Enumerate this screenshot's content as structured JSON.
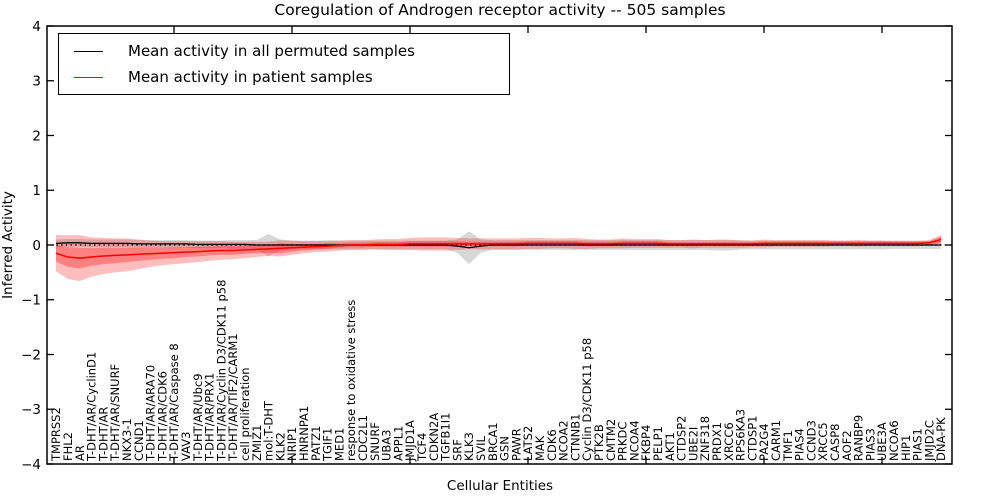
{
  "title": "Coregulation of Androgen receptor activity -- 505 samples",
  "xlabel": "Cellular Entities",
  "ylabel": "Inferred Activity",
  "legend": {
    "items": [
      {
        "label": "Mean activity in all permuted samples",
        "color": "#000000"
      },
      {
        "label": "Mean activity in patient samples",
        "color": "#ff0000"
      }
    ]
  },
  "colors": {
    "patient_line": "#ff0000",
    "permuted_line": "#000000",
    "patient_band": "#ff0000",
    "permuted_band": "#8c8c8c",
    "frame": "#000000",
    "background": "#ffffff"
  },
  "chart_data": {
    "type": "line",
    "title": "Coregulation of Androgen receptor activity -- 505 samples",
    "xlabel": "Cellular Entities",
    "ylabel": "Inferred Activity",
    "ylim": [
      -4,
      4
    ],
    "yticks": [
      -4,
      -3,
      -2,
      -1,
      0,
      1,
      2,
      3,
      4
    ],
    "yticklabels": [
      "−4",
      "−3",
      "−2",
      "−1",
      "0",
      "1",
      "2",
      "3",
      "4"
    ],
    "xtick_every": 10,
    "grid": false,
    "legend_position": "upper left",
    "zero_line": {
      "style": "dotted",
      "color": "#000000",
      "y": 0
    },
    "categories": [
      "TMPRSS2",
      "FHL2",
      "AR",
      "T-DHT/AR/CyclinD1",
      "T-DHT/AR",
      "T-DHT/AR/SNURF",
      "NKX3-1",
      "CCND1",
      "T-DHT/AR/ARA70",
      "T-DHT/AR/CDK6",
      "T-DHT/AR/Caspase 8",
      "VAV3",
      "T-DHT/AR/Ubc9",
      "T-DHT/AR/PRX1",
      "T-DHT/AR/Cyclin D3/CDK11 p58",
      "T-DHT/AR/TIF2/CARM1",
      "cell proliferation",
      "ZMIZ1",
      "mol:T-DHT",
      "KLK2",
      "NRIP1",
      "HNRNPA1",
      "PATZ1",
      "TGIF1",
      "MED1",
      "response to oxidative stress",
      "CDC2L1",
      "SNURF",
      "UBA3",
      "APPL1",
      "JMJD1A",
      "TCF4",
      "CDKN2A",
      "TGFB1I1",
      "SRF",
      "KLK3",
      "SVIL",
      "BRCA1",
      "GSN",
      "PAWR",
      "LATS2",
      "MAK",
      "CDK6",
      "NCOA2",
      "CTNNB1",
      "Cyclin D3/CDK11 p58",
      "PTK2B",
      "CMTM2",
      "PRKDC",
      "NCOA4",
      "FKBP4",
      "PELP1",
      "AKT1",
      "CTDSP2",
      "UBE2I",
      "ZNF318",
      "PRDX1",
      "XRCC6",
      "RPS6KA3",
      "CTDSP1",
      "PA2G4",
      "CARM1",
      "TMF1",
      "PIAS4",
      "CCND3",
      "XRCC5",
      "CASP8",
      "AOF2",
      "RANBP9",
      "PIAS3",
      "UBE3A",
      "NCOA6",
      "HIP1",
      "PIAS1",
      "JMJD2C",
      "DNA-PK"
    ],
    "series": [
      {
        "id": "permuted-mean-line",
        "name": "Mean activity in all permuted samples",
        "color": "#000000",
        "stroke_width": 1.3,
        "values": [
          0.03,
          0.04,
          0.04,
          0.03,
          0.03,
          0.03,
          0.03,
          0.02,
          0.02,
          0.02,
          0.02,
          0.02,
          0.01,
          0.01,
          0.01,
          0.01,
          0.01,
          0.0,
          0.0,
          0.0,
          0.0,
          0.0,
          0.0,
          0.0,
          0.0,
          0.0,
          0.0,
          0.0,
          0.0,
          0.0,
          0.0,
          0.0,
          0.0,
          0.0,
          -0.02,
          -0.05,
          -0.02,
          0.0,
          0.0,
          0.0,
          0.0,
          0.0,
          0.0,
          0.0,
          0.0,
          0.0,
          0.0,
          0.0,
          0.0,
          0.0,
          0.0,
          0.0,
          0.0,
          0.0,
          0.0,
          0.0,
          0.0,
          0.0,
          0.0,
          0.0,
          0.0,
          0.0,
          0.0,
          0.0,
          0.0,
          0.0,
          0.0,
          0.0,
          0.0,
          0.0,
          0.0,
          0.0,
          0.0,
          0.0,
          0.0,
          0.0
        ]
      },
      {
        "id": "patient-mean-line",
        "name": "Mean activity in patient samples",
        "color": "#ff0000",
        "stroke_width": 1.5,
        "values": [
          -0.15,
          -0.22,
          -0.24,
          -0.22,
          -0.2,
          -0.19,
          -0.18,
          -0.17,
          -0.16,
          -0.15,
          -0.14,
          -0.13,
          -0.12,
          -0.11,
          -0.1,
          -0.1,
          -0.09,
          -0.08,
          -0.07,
          -0.06,
          -0.05,
          -0.04,
          -0.03,
          -0.02,
          -0.01,
          0.0,
          0.0,
          0.01,
          0.01,
          0.01,
          0.02,
          0.02,
          0.02,
          0.02,
          0.02,
          0.02,
          0.02,
          0.02,
          0.02,
          0.02,
          0.03,
          0.03,
          0.03,
          0.03,
          0.03,
          0.02,
          0.02,
          0.02,
          0.03,
          0.03,
          0.03,
          0.03,
          0.02,
          0.02,
          0.02,
          0.02,
          0.02,
          0.02,
          0.02,
          0.02,
          0.03,
          0.03,
          0.03,
          0.03,
          0.03,
          0.03,
          0.03,
          0.03,
          0.03,
          0.03,
          0.03,
          0.03,
          0.03,
          0.03,
          0.04,
          0.1
        ]
      }
    ],
    "bands": [
      {
        "id": "permuted-std-band",
        "name": "Std of permuted samples",
        "color": "#8c8c8c",
        "opacity": 0.35,
        "center_series": 0,
        "halfwidths": [
          0.07,
          0.07,
          0.07,
          0.07,
          0.07,
          0.07,
          0.07,
          0.07,
          0.07,
          0.07,
          0.07,
          0.07,
          0.07,
          0.07,
          0.07,
          0.08,
          0.08,
          0.09,
          0.2,
          0.1,
          0.08,
          0.08,
          0.08,
          0.08,
          0.08,
          0.08,
          0.08,
          0.08,
          0.08,
          0.08,
          0.08,
          0.08,
          0.08,
          0.08,
          0.12,
          0.3,
          0.12,
          0.09,
          0.09,
          0.09,
          0.09,
          0.09,
          0.09,
          0.09,
          0.09,
          0.09,
          0.09,
          0.09,
          0.09,
          0.09,
          0.09,
          0.09,
          0.09,
          0.09,
          0.09,
          0.09,
          0.1,
          0.1,
          0.08,
          0.08,
          0.08,
          0.08,
          0.08,
          0.08,
          0.08,
          0.08,
          0.08,
          0.08,
          0.08,
          0.08,
          0.08,
          0.07,
          0.07,
          0.07,
          0.07,
          0.07
        ]
      },
      {
        "id": "patient-std-outer-band",
        "name": "Outer std band of patient samples",
        "color": "#ff0000",
        "opacity": 0.26,
        "center_series": 1,
        "halfwidths": [
          0.33,
          0.4,
          0.42,
          0.36,
          0.33,
          0.31,
          0.3,
          0.27,
          0.24,
          0.22,
          0.21,
          0.2,
          0.19,
          0.18,
          0.17,
          0.16,
          0.15,
          0.14,
          0.13,
          0.15,
          0.13,
          0.11,
          0.1,
          0.1,
          0.09,
          0.09,
          0.09,
          0.09,
          0.1,
          0.1,
          0.11,
          0.12,
          0.12,
          0.12,
          0.11,
          0.1,
          0.1,
          0.1,
          0.1,
          0.1,
          0.1,
          0.1,
          0.09,
          0.09,
          0.1,
          0.09,
          0.08,
          0.08,
          0.09,
          0.08,
          0.08,
          0.08,
          0.07,
          0.07,
          0.08,
          0.07,
          0.07,
          0.07,
          0.07,
          0.06,
          0.07,
          0.06,
          0.06,
          0.06,
          0.06,
          0.06,
          0.05,
          0.05,
          0.06,
          0.05,
          0.05,
          0.05,
          0.05,
          0.05,
          0.05,
          0.08
        ]
      },
      {
        "id": "patient-std-inner-band",
        "name": "Inner std band of patient samples",
        "color": "#ff0000",
        "opacity": 0.32,
        "center_series": 1,
        "halfwidths": [
          0.15,
          0.18,
          0.19,
          0.16,
          0.15,
          0.14,
          0.13,
          0.12,
          0.11,
          0.1,
          0.1,
          0.09,
          0.09,
          0.08,
          0.08,
          0.08,
          0.07,
          0.07,
          0.07,
          0.09,
          0.07,
          0.06,
          0.05,
          0.05,
          0.04,
          0.04,
          0.04,
          0.04,
          0.04,
          0.04,
          0.05,
          0.05,
          0.05,
          0.05,
          0.05,
          0.04,
          0.04,
          0.04,
          0.04,
          0.04,
          0.04,
          0.04,
          0.04,
          0.04,
          0.04,
          0.04,
          0.04,
          0.04,
          0.04,
          0.04,
          0.04,
          0.04,
          0.03,
          0.03,
          0.03,
          0.03,
          0.03,
          0.03,
          0.03,
          0.03,
          0.03,
          0.03,
          0.03,
          0.03,
          0.03,
          0.03,
          0.03,
          0.03,
          0.03,
          0.03,
          0.03,
          0.03,
          0.03,
          0.03,
          0.03,
          0.05
        ]
      }
    ]
  }
}
